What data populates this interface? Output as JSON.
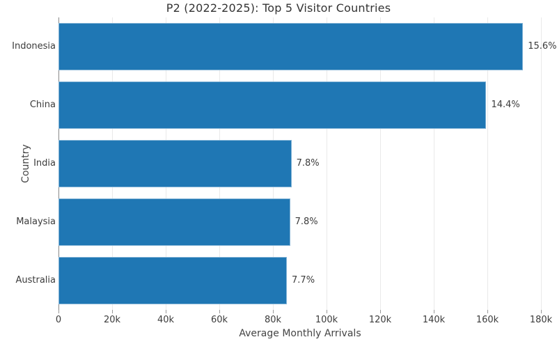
{
  "chart_data": {
    "type": "bar",
    "orientation": "horizontal",
    "title": "P2 (2022-2025): Top 5 Visitor Countries",
    "xlabel": "Average Monthly Arrivals",
    "ylabel": "Country",
    "categories": [
      "Indonesia",
      "China",
      "India",
      "Malaysia",
      "Australia"
    ],
    "values": [
      173300,
      159600,
      86900,
      86400,
      85200
    ],
    "bar_labels": [
      "15.6%",
      "14.4%",
      "7.8%",
      "7.8%",
      "7.7%"
    ],
    "xlim": [
      0,
      180000
    ],
    "xticks": {
      "values": [
        0,
        20000,
        40000,
        60000,
        80000,
        100000,
        120000,
        140000,
        160000,
        180000
      ],
      "labels": [
        "0",
        "20k",
        "40k",
        "60k",
        "80k",
        "100k",
        "120k",
        "140k",
        "160k",
        "180k"
      ]
    },
    "grid": "vertical-only",
    "legend": "none",
    "colors": {
      "bar": "#1f77b4",
      "grid": "#e9e9e9",
      "axis_line": "#888888",
      "tick": "#999999",
      "text": "#3b3b3b",
      "title": "#333333"
    }
  }
}
